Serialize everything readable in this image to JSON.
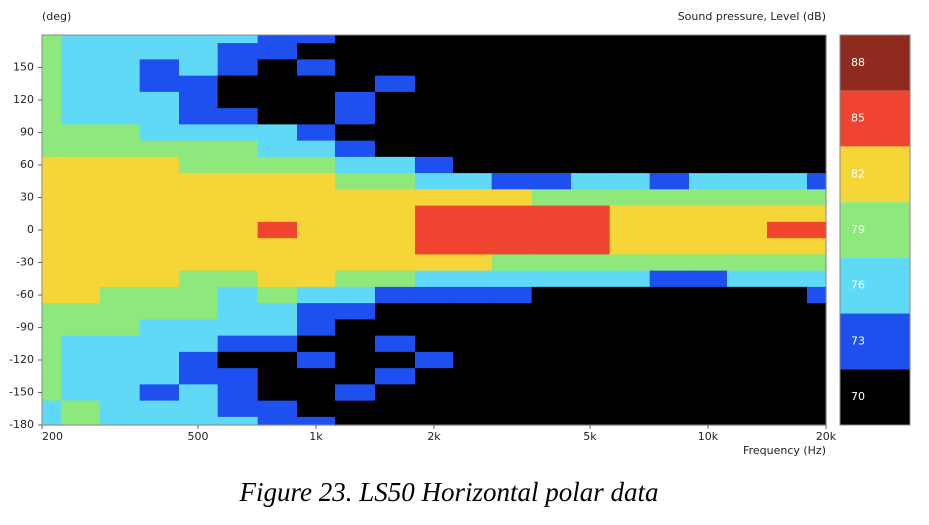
{
  "chart_data": {
    "type": "contour",
    "y_label": "(deg)",
    "colorbar_label": "Sound pressure, Level (dB)",
    "x_label": "Frequency (Hz)",
    "caption": "Figure 23. LS50 Horizontal polar data",
    "log_x": true,
    "xlim": [
      200,
      20000
    ],
    "xticks": [
      200,
      500,
      {
        "value": 1000,
        "label": "1k"
      },
      {
        "value": 2000,
        "label": "2k"
      },
      {
        "value": 5000,
        "label": "5k"
      },
      {
        "value": 10000,
        "label": "10k"
      },
      {
        "value": 20000,
        "label": "20k"
      }
    ],
    "ylim": [
      -180,
      180
    ],
    "yticks": [
      -180,
      -150,
      -120,
      -90,
      -60,
      -30,
      0,
      30,
      60,
      90,
      120,
      150
    ],
    "x": [
      200,
      250,
      315,
      400,
      500,
      630,
      800,
      1000,
      1250,
      1600,
      2000,
      2500,
      3150,
      4000,
      5000,
      6300,
      8000,
      10000,
      12500,
      16000,
      20000
    ],
    "y": [
      180,
      165,
      150,
      135,
      120,
      105,
      90,
      75,
      60,
      45,
      30,
      15,
      0,
      -15,
      -30,
      -45,
      -60,
      -75,
      -90,
      -105,
      -120,
      -135,
      -150,
      -165,
      -180
    ],
    "z": [
      [
        80,
        77,
        77,
        77,
        77,
        77,
        74,
        74,
        71,
        71,
        68,
        68,
        68,
        68,
        68,
        68,
        68,
        68,
        68,
        68,
        68
      ],
      [
        80,
        77,
        77,
        77,
        77,
        74,
        74,
        71,
        71,
        68,
        68,
        68,
        68,
        68,
        68,
        68,
        68,
        68,
        68,
        68,
        68
      ],
      [
        80,
        77,
        77,
        74,
        77,
        74,
        71,
        74,
        71,
        71,
        68,
        68,
        68,
        68,
        68,
        68,
        68,
        68,
        68,
        68,
        68
      ],
      [
        80,
        77,
        77,
        74,
        74,
        71,
        68,
        71,
        71,
        74,
        71,
        68,
        68,
        68,
        68,
        68,
        68,
        68,
        68,
        68,
        68
      ],
      [
        80,
        77,
        77,
        77,
        74,
        71,
        68,
        71,
        74,
        71,
        68,
        68,
        68,
        68,
        68,
        68,
        68,
        68,
        68,
        68,
        68
      ],
      [
        80,
        77,
        77,
        77,
        74,
        74,
        71,
        71,
        74,
        71,
        68,
        68,
        68,
        68,
        68,
        68,
        68,
        68,
        68,
        68,
        68
      ],
      [
        80,
        80,
        80,
        77,
        77,
        77,
        77,
        74,
        71,
        68,
        68,
        68,
        68,
        68,
        68,
        68,
        68,
        68,
        68,
        68,
        68
      ],
      [
        80,
        80,
        80,
        80,
        80,
        80,
        77,
        77,
        74,
        71,
        68,
        68,
        68,
        68,
        68,
        68,
        68,
        68,
        68,
        68,
        68
      ],
      [
        83,
        83,
        83,
        83,
        80,
        80,
        80,
        80,
        77,
        77,
        74,
        71,
        71,
        68,
        71,
        71,
        71,
        71,
        71,
        71,
        68
      ],
      [
        83,
        83,
        83,
        83,
        83,
        83,
        83,
        83,
        80,
        80,
        77,
        77,
        74,
        74,
        77,
        77,
        74,
        77,
        77,
        77,
        74
      ],
      [
        83,
        83,
        83,
        83,
        83,
        83,
        83,
        83,
        83,
        83,
        83,
        83,
        83,
        80,
        80,
        80,
        80,
        80,
        80,
        80,
        80
      ],
      [
        83,
        83,
        83,
        83,
        83,
        83,
        83,
        83,
        83,
        83,
        86,
        86,
        86,
        86,
        86,
        83,
        83,
        83,
        83,
        83,
        83
      ],
      [
        83,
        83,
        83,
        83,
        83,
        83,
        86,
        83,
        83,
        83,
        86,
        86,
        86,
        86,
        86,
        83,
        83,
        83,
        83,
        86,
        86
      ],
      [
        83,
        83,
        83,
        83,
        83,
        83,
        83,
        83,
        83,
        83,
        86,
        86,
        86,
        86,
        86,
        83,
        83,
        83,
        83,
        83,
        83
      ],
      [
        83,
        83,
        83,
        83,
        83,
        83,
        83,
        83,
        83,
        83,
        83,
        83,
        80,
        80,
        80,
        80,
        80,
        80,
        80,
        80,
        80
      ],
      [
        83,
        83,
        83,
        83,
        80,
        80,
        83,
        83,
        80,
        80,
        77,
        77,
        77,
        77,
        77,
        77,
        74,
        74,
        77,
        77,
        77
      ],
      [
        83,
        83,
        80,
        80,
        80,
        77,
        80,
        77,
        77,
        74,
        74,
        74,
        74,
        71,
        71,
        71,
        71,
        71,
        71,
        71,
        74
      ],
      [
        80,
        80,
        80,
        80,
        80,
        77,
        77,
        74,
        74,
        71,
        71,
        68,
        68,
        68,
        68,
        68,
        68,
        68,
        68,
        68,
        68
      ],
      [
        80,
        80,
        80,
        77,
        77,
        77,
        77,
        74,
        71,
        71,
        68,
        68,
        68,
        68,
        68,
        68,
        68,
        68,
        68,
        68,
        68
      ],
      [
        80,
        77,
        77,
        77,
        77,
        74,
        74,
        71,
        71,
        74,
        68,
        68,
        68,
        68,
        68,
        68,
        68,
        68,
        68,
        68,
        68
      ],
      [
        80,
        77,
        77,
        77,
        74,
        71,
        71,
        74,
        71,
        71,
        74,
        68,
        68,
        68,
        68,
        68,
        68,
        68,
        68,
        68,
        68
      ],
      [
        80,
        77,
        77,
        77,
        74,
        74,
        71,
        68,
        71,
        74,
        71,
        68,
        68,
        68,
        68,
        68,
        68,
        68,
        68,
        68,
        68
      ],
      [
        80,
        77,
        77,
        74,
        77,
        74,
        71,
        71,
        74,
        71,
        68,
        68,
        68,
        68,
        68,
        68,
        68,
        68,
        68,
        68,
        68
      ],
      [
        77,
        80,
        77,
        77,
        77,
        74,
        74,
        71,
        71,
        68,
        68,
        68,
        68,
        68,
        68,
        68,
        68,
        68,
        68,
        68,
        68
      ],
      [
        77,
        80,
        77,
        77,
        77,
        77,
        74,
        74,
        71,
        71,
        68,
        68,
        68,
        68,
        68,
        68,
        68,
        68,
        68,
        68,
        68
      ]
    ],
    "colorbar": {
      "levels": [
        88,
        85,
        82,
        79,
        76,
        73,
        70
      ],
      "colors": [
        "#8e2a1e",
        "#ee4430",
        "#f6d636",
        "#8fe87c",
        "#5fd9f6",
        "#1e50f0",
        "#000000"
      ]
    }
  }
}
